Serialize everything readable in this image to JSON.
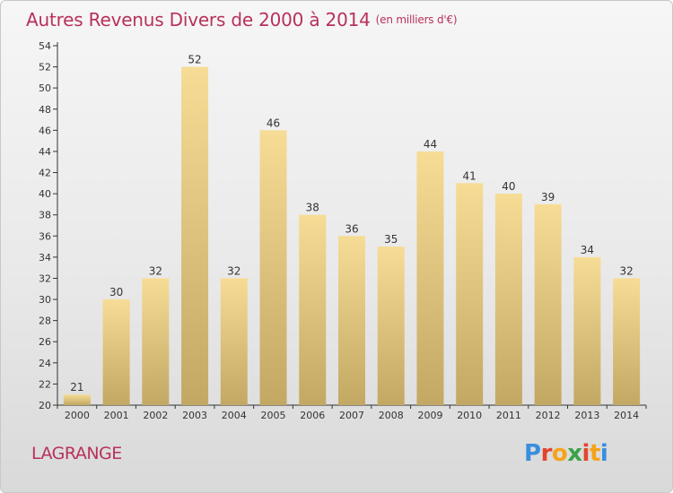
{
  "title": "Autres Revenus Divers de 2000 à 2014",
  "unit_note": "(en milliers d'€)",
  "location": "LAGRANGE",
  "logo_text": "Proxiti",
  "colors": {
    "title": "#b8315b",
    "bar_light": "#f6dc95",
    "bar_dark": "#c2a863",
    "logo_letters": [
      "#3a8ede",
      "#e2462f",
      "#f5a31a",
      "#3aa34a",
      "#e2462f",
      "#f5a31a",
      "#3a8ede"
    ]
  },
  "chart_data": {
    "type": "bar",
    "title": "Autres Revenus Divers de 2000 à 2014",
    "xlabel": "",
    "ylabel": "",
    "categories": [
      "2000",
      "2001",
      "2002",
      "2003",
      "2004",
      "2005",
      "2006",
      "2007",
      "2008",
      "2009",
      "2010",
      "2011",
      "2012",
      "2013",
      "2014"
    ],
    "values": [
      21,
      30,
      32,
      52,
      32,
      46,
      38,
      36,
      35,
      44,
      41,
      40,
      39,
      34,
      32
    ],
    "ylim": [
      20,
      54
    ],
    "yticks": [
      20,
      22,
      24,
      26,
      28,
      30,
      32,
      34,
      36,
      38,
      40,
      42,
      44,
      46,
      48,
      50,
      52,
      54
    ],
    "grid": false,
    "legend": "none"
  }
}
